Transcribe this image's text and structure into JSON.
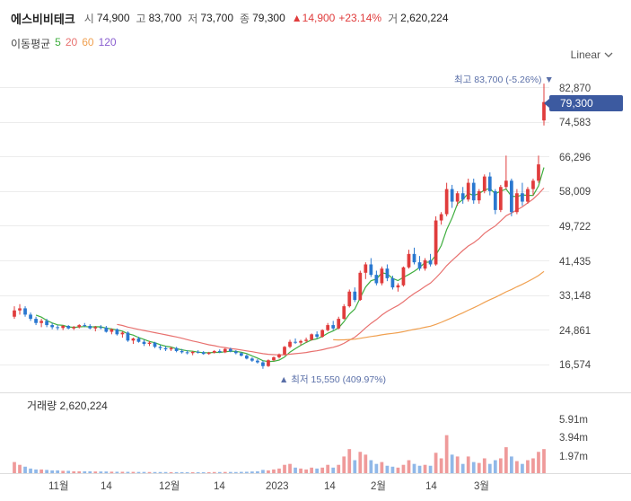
{
  "header": {
    "name": "에스비비테크",
    "open_label": "시",
    "open": "74,900",
    "high_label": "고",
    "high": "83,700",
    "low_label": "저",
    "low": "73,700",
    "close_label": "종",
    "close": "79,300",
    "change": "▲14,900",
    "change_pct": "+23.14%",
    "volume_label": "거",
    "volume": "2,620,224"
  },
  "ma_legend": {
    "label": "이동평균",
    "periods": [
      {
        "text": "5",
        "color": "#3fae3f"
      },
      {
        "text": "20",
        "color": "#e8716f"
      },
      {
        "text": "60",
        "color": "#f0a050"
      },
      {
        "text": "120",
        "color": "#8a5fd0"
      }
    ]
  },
  "scale_button": {
    "label": "Linear",
    "icon": "chevron-down-icon"
  },
  "price_axis": {
    "ticks": [
      "82,870",
      "74,583",
      "66,296",
      "58,009",
      "49,722",
      "41,435",
      "33,148",
      "24,861",
      "16,574"
    ]
  },
  "current_price_badge": "79,300",
  "annotations": {
    "high": "최고 83,700 (-5.26%) ▼",
    "low": "▲ 최저 15,550 (409.97%)"
  },
  "volume_panel": {
    "title": "거래량 2,620,224",
    "ticks": [
      "5.91m",
      "3.94m",
      "1.97m"
    ]
  },
  "time_axis": {
    "ticks": [
      "11월",
      "14",
      "12월",
      "14",
      "2023",
      "14",
      "2월",
      "14",
      "3월"
    ]
  },
  "colors": {
    "up": "#e03c3c",
    "down": "#2a78d0",
    "badge": "#3c5aa0",
    "ma5": "#3fae3f",
    "ma20": "#e8716f",
    "ma60": "#f0a050"
  },
  "chart_data": {
    "type": "candlestick",
    "y_range": [
      12000,
      88000
    ],
    "candles": [
      [
        28000,
        30500,
        27500,
        29500
      ],
      [
        29500,
        31000,
        28500,
        30000
      ],
      [
        30000,
        30500,
        28000,
        28500
      ],
      [
        28500,
        29000,
        27000,
        27500
      ],
      [
        27500,
        28000,
        26000,
        26500
      ],
      [
        26500,
        27500,
        25500,
        27000
      ],
      [
        27000,
        27500,
        25500,
        26000
      ],
      [
        26000,
        26500,
        25000,
        25500
      ],
      [
        25500,
        26000,
        24800,
        25300
      ],
      [
        25300,
        26000,
        24800,
        25800
      ],
      [
        25800,
        26000,
        25000,
        25200
      ],
      [
        25200,
        25800,
        24800,
        25500
      ],
      [
        25500,
        26200,
        25200,
        26000
      ],
      [
        26000,
        26500,
        25500,
        25800
      ],
      [
        25800,
        26200,
        25000,
        25200
      ],
      [
        25200,
        25800,
        24500,
        25500
      ],
      [
        25500,
        26000,
        25000,
        25400
      ],
      [
        25400,
        25800,
        24200,
        24400
      ],
      [
        24400,
        25200,
        23800,
        25000
      ],
      [
        25000,
        25200,
        23500,
        23800
      ],
      [
        23800,
        24500,
        23000,
        24200
      ],
      [
        24200,
        24500,
        22000,
        22300
      ],
      [
        22300,
        23000,
        21500,
        22800
      ],
      [
        22800,
        23200,
        21800,
        22000
      ],
      [
        22000,
        22500,
        21000,
        21500
      ],
      [
        21500,
        22200,
        21000,
        21800
      ],
      [
        21800,
        22000,
        20500,
        20800
      ],
      [
        20800,
        21200,
        20000,
        20500
      ],
      [
        20500,
        21000,
        19800,
        20200
      ],
      [
        20200,
        20800,
        19800,
        20500
      ],
      [
        20500,
        20800,
        19500,
        19800
      ],
      [
        19800,
        20300,
        19200,
        19500
      ],
      [
        19500,
        20000,
        19000,
        19300
      ],
      [
        19300,
        19800,
        18800,
        19600
      ],
      [
        19600,
        20000,
        19200,
        19500
      ],
      [
        19500,
        19800,
        18900,
        19100
      ],
      [
        19100,
        19600,
        18900,
        19400
      ],
      [
        19400,
        20000,
        19200,
        19800
      ],
      [
        19800,
        20200,
        19300,
        19500
      ],
      [
        19500,
        20500,
        19300,
        20300
      ],
      [
        20300,
        20600,
        19500,
        19700
      ],
      [
        19700,
        20000,
        19000,
        19300
      ],
      [
        19300,
        19500,
        18500,
        18700
      ],
      [
        18700,
        19000,
        17800,
        18000
      ],
      [
        18000,
        18300,
        17200,
        17500
      ],
      [
        17500,
        17900,
        16800,
        17100
      ],
      [
        17100,
        17500,
        15550,
        16200
      ],
      [
        16200,
        17800,
        16000,
        17600
      ],
      [
        17600,
        18500,
        17400,
        18300
      ],
      [
        18300,
        19200,
        18000,
        19000
      ],
      [
        19000,
        21000,
        18800,
        20800
      ],
      [
        20800,
        22500,
        20500,
        22000
      ],
      [
        22000,
        22800,
        21500,
        21800
      ],
      [
        21800,
        22500,
        21200,
        22200
      ],
      [
        22200,
        23000,
        21800,
        22500
      ],
      [
        22500,
        24000,
        22300,
        23800
      ],
      [
        23800,
        24500,
        22800,
        23200
      ],
      [
        23200,
        25000,
        23000,
        24800
      ],
      [
        24800,
        26500,
        24500,
        26000
      ],
      [
        26000,
        27000,
        24800,
        25200
      ],
      [
        25200,
        28000,
        25000,
        27500
      ],
      [
        27500,
        31000,
        27300,
        30500
      ],
      [
        30500,
        34500,
        30200,
        34000
      ],
      [
        34000,
        35000,
        31500,
        32000
      ],
      [
        32000,
        39000,
        31800,
        38500
      ],
      [
        38500,
        41000,
        37000,
        40500
      ],
      [
        40500,
        42000,
        37500,
        38000
      ],
      [
        38000,
        39000,
        35500,
        36000
      ],
      [
        36000,
        40000,
        35500,
        39500
      ],
      [
        39500,
        40500,
        36500,
        37200
      ],
      [
        37200,
        37800,
        34500,
        35000
      ],
      [
        35000,
        36000,
        34000,
        35500
      ],
      [
        35500,
        40000,
        35200,
        39800
      ],
      [
        39800,
        44000,
        39500,
        43000
      ],
      [
        43000,
        44500,
        40500,
        41000
      ],
      [
        41000,
        42500,
        39000,
        39500
      ],
      [
        39500,
        42000,
        39000,
        41500
      ],
      [
        41500,
        43000,
        40000,
        40500
      ],
      [
        40500,
        52000,
        40200,
        51000
      ],
      [
        51000,
        53000,
        50000,
        52500
      ],
      [
        52500,
        60000,
        52000,
        58500
      ],
      [
        58500,
        59500,
        54000,
        55500
      ],
      [
        55500,
        58000,
        54500,
        57500
      ],
      [
        57500,
        59000,
        55000,
        56000
      ],
      [
        56000,
        61000,
        55500,
        60000
      ],
      [
        60000,
        61000,
        55000,
        55800
      ],
      [
        55800,
        58500,
        55000,
        58000
      ],
      [
        58000,
        62000,
        57500,
        61500
      ],
      [
        61500,
        62500,
        57000,
        58000
      ],
      [
        58000,
        58500,
        52500,
        53500
      ],
      [
        53500,
        59500,
        53000,
        59000
      ],
      [
        59000,
        66500,
        58500,
        60500
      ],
      [
        60500,
        61000,
        52000,
        53000
      ],
      [
        53000,
        58500,
        52500,
        57500
      ],
      [
        57500,
        60000,
        54500,
        55500
      ],
      [
        55500,
        59000,
        55000,
        58500
      ],
      [
        58500,
        61000,
        57000,
        60500
      ],
      [
        60500,
        66500,
        60000,
        64400
      ],
      [
        74900,
        83700,
        73700,
        79300
      ]
    ],
    "volume": [
      1.2,
      0.9,
      0.7,
      0.5,
      0.4,
      0.4,
      0.35,
      0.3,
      0.3,
      0.25,
      0.25,
      0.2,
      0.2,
      0.2,
      0.2,
      0.18,
      0.18,
      0.18,
      0.16,
      0.15,
      0.15,
      0.14,
      0.14,
      0.13,
      0.13,
      0.12,
      0.12,
      0.12,
      0.12,
      0.11,
      0.11,
      0.11,
      0.1,
      0.1,
      0.1,
      0.1,
      0.1,
      0.12,
      0.12,
      0.13,
      0.13,
      0.12,
      0.14,
      0.15,
      0.18,
      0.2,
      0.35,
      0.3,
      0.4,
      0.5,
      0.9,
      1.0,
      0.6,
      0.5,
      0.4,
      0.6,
      0.5,
      0.6,
      0.9,
      0.6,
      0.9,
      1.8,
      2.6,
      1.4,
      2.3,
      2.0,
      1.4,
      1.0,
      1.2,
      0.8,
      0.7,
      0.6,
      0.9,
      1.4,
      1.0,
      0.8,
      0.9,
      0.8,
      2.2,
      1.6,
      4.1,
      2.0,
      1.8,
      1.0,
      1.8,
      1.2,
      1.1,
      1.6,
      1.0,
      1.4,
      1.6,
      2.8,
      1.8,
      1.3,
      1.0,
      1.4,
      1.6,
      2.3,
      2.6
    ],
    "ma5_start_index": 4,
    "ma20_start_index": 19,
    "ma60_start_index": 59
  }
}
